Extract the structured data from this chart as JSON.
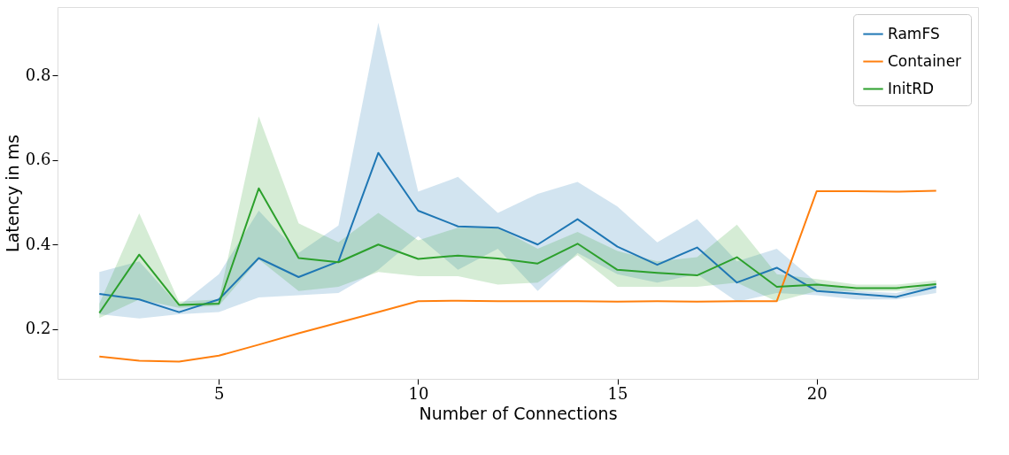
{
  "chart_data": {
    "type": "line",
    "xlabel": "Number of Connections",
    "ylabel": "Latency in ms",
    "x": [
      2,
      3,
      4,
      5,
      6,
      7,
      8,
      9,
      10,
      11,
      12,
      13,
      14,
      15,
      16,
      17,
      18,
      19,
      20,
      21,
      22,
      23
    ],
    "xlim": [
      0.95,
      24.05
    ],
    "xticks": [
      5,
      10,
      15,
      20
    ],
    "ylim": [
      0.082,
      0.962
    ],
    "yticks": [
      0.2,
      0.4,
      0.6,
      0.8
    ],
    "grid": false,
    "legend": "top right",
    "line_style": "solid",
    "marker": "none",
    "series": [
      {
        "name": "RamFS",
        "color": "#1f77b4",
        "values": [
          0.283,
          0.27,
          0.24,
          0.27,
          0.368,
          0.323,
          0.36,
          0.617,
          0.48,
          0.443,
          0.44,
          0.4,
          0.46,
          0.395,
          0.352,
          0.393,
          0.31,
          0.345,
          0.29,
          0.283,
          0.276,
          0.3
        ],
        "lower": [
          0.235,
          0.225,
          0.235,
          0.24,
          0.275,
          0.28,
          0.285,
          0.34,
          0.42,
          0.34,
          0.39,
          0.29,
          0.38,
          0.33,
          0.31,
          0.33,
          0.265,
          0.285,
          0.28,
          0.27,
          0.27,
          0.285
        ],
        "upper": [
          0.335,
          0.36,
          0.255,
          0.33,
          0.48,
          0.38,
          0.445,
          0.925,
          0.525,
          0.56,
          0.475,
          0.52,
          0.548,
          0.49,
          0.405,
          0.46,
          0.36,
          0.39,
          0.31,
          0.29,
          0.285,
          0.31
        ]
      },
      {
        "name": "Container",
        "color": "#ff7f0e",
        "values": [
          0.135,
          0.125,
          0.123,
          0.137,
          0.163,
          0.19,
          0.215,
          0.24,
          0.266,
          0.267,
          0.266,
          0.266,
          0.266,
          0.265,
          0.266,
          0.265,
          0.266,
          0.266,
          0.526,
          0.526,
          0.525,
          0.527
        ]
      },
      {
        "name": "InitRD",
        "color": "#2ca02c",
        "values": [
          0.238,
          0.376,
          0.257,
          0.26,
          0.533,
          0.368,
          0.358,
          0.4,
          0.366,
          0.374,
          0.367,
          0.355,
          0.402,
          0.34,
          0.333,
          0.327,
          0.37,
          0.3,
          0.305,
          0.297,
          0.297,
          0.306
        ],
        "lower": [
          0.226,
          0.27,
          0.25,
          0.255,
          0.365,
          0.29,
          0.3,
          0.335,
          0.325,
          0.325,
          0.305,
          0.31,
          0.375,
          0.3,
          0.3,
          0.3,
          0.31,
          0.265,
          0.29,
          0.29,
          0.29,
          0.295
        ],
        "upper": [
          0.26,
          0.474,
          0.265,
          0.27,
          0.703,
          0.45,
          0.405,
          0.475,
          0.41,
          0.44,
          0.44,
          0.39,
          0.43,
          0.385,
          0.36,
          0.37,
          0.447,
          0.33,
          0.318,
          0.305,
          0.305,
          0.315
        ]
      }
    ]
  }
}
